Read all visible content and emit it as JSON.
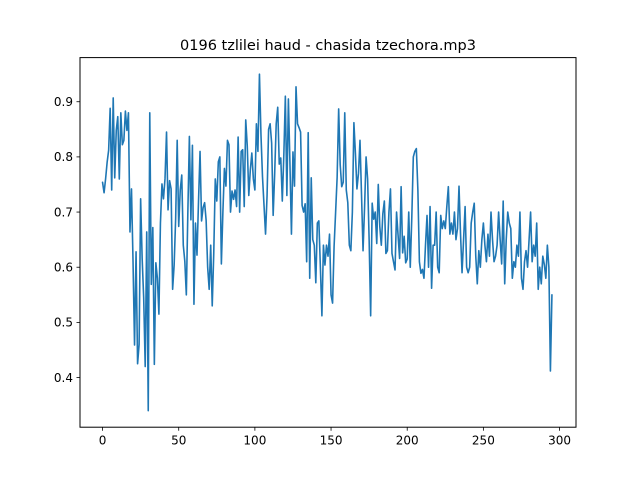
{
  "chart_data": {
    "type": "line",
    "title": "0196 tzlilei haud - chasida tzechora.mp3",
    "xlabel": "",
    "ylabel": "",
    "xlim": [
      -14.8,
      310.8
    ],
    "ylim": [
      0.31,
      0.98
    ],
    "x_ticks": [
      0,
      50,
      100,
      150,
      200,
      250,
      300
    ],
    "y_ticks": [
      0.4,
      0.5,
      0.6,
      0.7,
      0.8,
      0.9
    ],
    "x_tick_labels": [
      "0",
      "50",
      "100",
      "150",
      "200",
      "250",
      "300"
    ],
    "y_tick_labels": [
      "0.4",
      "0.5",
      "0.6",
      "0.7",
      "0.8",
      "0.9"
    ],
    "grid": false,
    "legend": "none",
    "series": [
      {
        "color": "#1f77b4",
        "x_start": 0,
        "x_step": 1,
        "values": [
          0.754,
          0.735,
          0.76,
          0.79,
          0.812,
          0.888,
          0.74,
          0.907,
          0.762,
          0.848,
          0.873,
          0.76,
          0.88,
          0.822,
          0.83,
          0.883,
          0.848,
          0.88,
          0.664,
          0.742,
          0.612,
          0.459,
          0.628,
          0.425,
          0.46,
          0.724,
          0.616,
          0.545,
          0.42,
          0.664,
          0.34,
          0.88,
          0.569,
          0.672,
          0.424,
          0.608,
          0.58,
          0.515,
          0.68,
          0.751,
          0.724,
          0.76,
          0.845,
          0.704,
          0.757,
          0.742,
          0.56,
          0.604,
          0.689,
          0.83,
          0.674,
          0.74,
          0.767,
          0.64,
          0.611,
          0.55,
          0.7,
          0.837,
          0.686,
          0.821,
          0.533,
          0.68,
          0.622,
          0.72,
          0.81,
          0.684,
          0.708,
          0.717,
          0.685,
          0.6,
          0.56,
          0.64,
          0.53,
          0.625,
          0.76,
          0.72,
          0.791,
          0.8,
          0.606,
          0.7,
          0.779,
          0.747,
          0.83,
          0.822,
          0.7,
          0.738,
          0.723,
          0.74,
          0.71,
          0.836,
          0.7,
          0.81,
          0.813,
          0.71,
          0.867,
          0.82,
          0.73,
          0.776,
          0.807,
          0.76,
          0.74,
          0.86,
          0.81,
          0.95,
          0.84,
          0.764,
          0.712,
          0.66,
          0.73,
          0.85,
          0.86,
          0.825,
          0.694,
          0.77,
          0.86,
          0.89,
          0.787,
          0.798,
          0.72,
          0.803,
          0.91,
          0.73,
          0.905,
          0.79,
          0.66,
          0.809,
          0.747,
          0.927,
          0.86,
          0.853,
          0.845,
          0.712,
          0.7,
          0.715,
          0.61,
          0.844,
          0.58,
          0.762,
          0.65,
          0.64,
          0.572,
          0.68,
          0.684,
          0.6,
          0.512,
          0.64,
          0.604,
          0.64,
          0.62,
          0.66,
          0.55,
          0.535,
          0.638,
          0.7,
          0.763,
          0.887,
          0.786,
          0.746,
          0.754,
          0.88,
          0.74,
          0.717,
          0.64,
          0.63,
          0.7,
          0.862,
          0.806,
          0.742,
          0.77,
          0.83,
          0.732,
          0.63,
          0.708,
          0.8,
          0.76,
          0.65,
          0.512,
          0.716,
          0.687,
          0.7,
          0.643,
          0.75,
          0.674,
          0.64,
          0.697,
          0.72,
          0.625,
          0.63,
          0.7,
          0.742,
          0.625,
          0.61,
          0.595,
          0.7,
          0.658,
          0.616,
          0.746,
          0.626,
          0.656,
          0.608,
          0.615,
          0.7,
          0.6,
          0.689,
          0.8,
          0.81,
          0.815,
          0.74,
          0.61,
          0.589,
          0.596,
          0.58,
          0.64,
          0.694,
          0.6,
          0.71,
          0.562,
          0.64,
          0.64,
          0.7,
          0.6,
          0.59,
          0.694,
          0.67,
          0.684,
          0.67,
          0.71,
          0.746,
          0.66,
          0.68,
          0.66,
          0.7,
          0.65,
          0.67,
          0.747,
          0.66,
          0.59,
          0.65,
          0.71,
          0.6,
          0.59,
          0.6,
          0.68,
          0.7,
          0.716,
          0.62,
          0.57,
          0.63,
          0.6,
          0.65,
          0.68,
          0.64,
          0.61,
          0.66,
          0.62,
          0.7,
          0.65,
          0.61,
          0.62,
          0.64,
          0.7,
          0.65,
          0.606,
          0.72,
          0.57,
          0.65,
          0.7,
          0.68,
          0.67,
          0.58,
          0.61,
          0.6,
          0.64,
          0.62,
          0.7,
          0.58,
          0.56,
          0.61,
          0.63,
          0.6,
          0.65,
          0.7,
          0.61,
          0.64,
          0.62,
          0.68,
          0.56,
          0.6,
          0.57,
          0.62,
          0.605,
          0.58,
          0.64,
          0.6,
          0.412,
          0.55
        ]
      }
    ]
  }
}
